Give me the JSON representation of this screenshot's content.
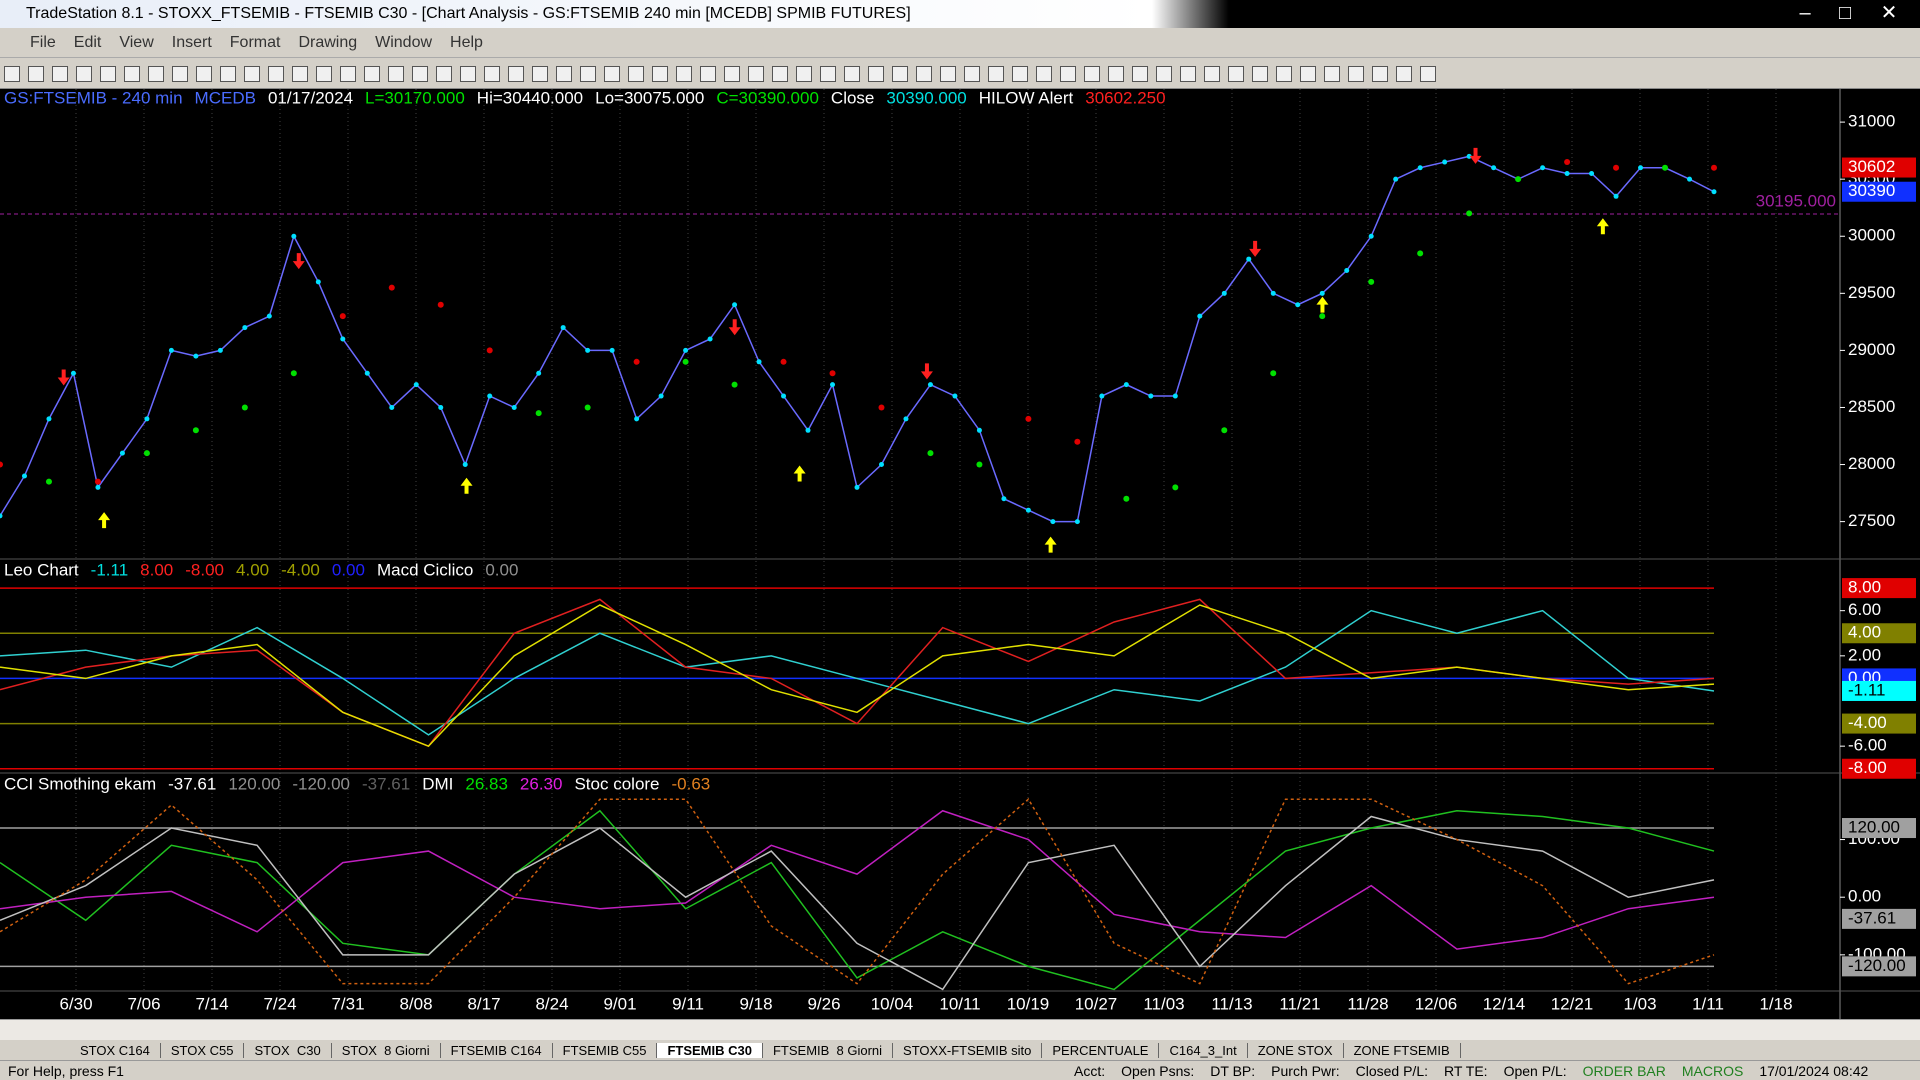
{
  "window": {
    "title": "TradeStation 8.1 - STOXX_FTSEMIB - FTSEMIB C30 - [Chart Analysis - GS:FTSEMIB  240 min  [MCEDB] SPMIB FUTURES]",
    "menu": [
      "File",
      "Edit",
      "View",
      "Insert",
      "Format",
      "Drawing",
      "Window",
      "Help"
    ],
    "tabs": [
      "STOX C164",
      "STOX C55",
      "STOX  C30",
      "STOX  8 Giorni",
      "FTSEMIB C164",
      "FTSEMIB C55",
      "FTSEMIB C30",
      "FTSEMIB  8 Giorni",
      "STOXX-FTSEMIB sito",
      "PERCENTUALE",
      "C164_3_Int",
      "ZONE STOX",
      "ZONE FTSEMIB"
    ],
    "active_tab": 6,
    "status": [
      "For Help, press F1",
      "Acct:",
      "Open Psns:",
      "DT BP:",
      "Purch Pwr:",
      "Closed P/L:",
      "RT TE:",
      "Open P/L:",
      "ORDER BAR",
      "MACROS",
      "17/01/2024 08:42"
    ]
  },
  "chart_data": [
    {
      "type": "line",
      "panel": "price",
      "header": [
        {
          "text": "GS:FTSEMIB - 240 min",
          "color": "#4a6cff"
        },
        {
          "text": "MCEDB",
          "color": "#4a6cff"
        },
        {
          "text": "01/17/2024",
          "color": "#ffffff"
        },
        {
          "text": "L=30170.000",
          "color": "#00e000"
        },
        {
          "text": "Hi=30440.000",
          "color": "#ffffff"
        },
        {
          "text": "Lo=30075.000",
          "color": "#ffffff"
        },
        {
          "text": "C=30390.000",
          "color": "#00e000"
        },
        {
          "text": "Close",
          "color": "#ffffff"
        },
        {
          "text": "30390.000",
          "color": "#00e0e0"
        },
        {
          "text": "HILOW Alert",
          "color": "#ffffff"
        },
        {
          "text": "30602.250",
          "color": "#ff2020"
        }
      ],
      "x_labels": [
        "6/30",
        "7/06",
        "7/14",
        "7/24",
        "7/31",
        "8/08",
        "8/17",
        "8/24",
        "9/01",
        "9/11",
        "9/18",
        "9/26",
        "10/04",
        "10/11",
        "10/19",
        "10/27",
        "11/03",
        "11/13",
        "11/21",
        "11/28",
        "12/06",
        "12/14",
        "12/21",
        "1/03",
        "1/11",
        "1/18"
      ],
      "ylim": [
        27190,
        31290
      ],
      "yticks": [
        27500,
        28000,
        28500,
        29000,
        29500,
        30000,
        30500,
        31000
      ],
      "markers": [
        {
          "value": 30602,
          "color": "#e00000",
          "text_color": "#ffffff"
        },
        {
          "value": 30390,
          "color": "#1030ff",
          "text_color": "#ffffff"
        }
      ],
      "level": {
        "value": 30195,
        "label": "30195.000",
        "color": "#a020a0"
      },
      "series": [
        {
          "color": "#6a6aff",
          "point_color": "#00e0ff",
          "values": [
            27550,
            27900,
            28400,
            28800,
            27800,
            28100,
            28400,
            29000,
            28950,
            29000,
            29200,
            29300,
            30000,
            29600,
            29100,
            28800,
            28500,
            28700,
            28500,
            28000,
            28600,
            28500,
            28800,
            29200,
            29000,
            29000,
            28400,
            28600,
            29000,
            29100,
            29400,
            28900,
            28600,
            28300,
            28700,
            27800,
            28000,
            28400,
            28700,
            28600,
            28300,
            27700,
            27600,
            27500,
            27500,
            28600,
            28700,
            28600,
            28600,
            29300,
            29500,
            29800,
            29500,
            29400,
            29500,
            29700,
            30000,
            30500,
            30600,
            30650,
            30700,
            30600,
            30500,
            30600,
            30550,
            30550,
            30350,
            30600,
            30600,
            30500,
            30390
          ]
        },
        {
          "color": "#00e000",
          "down_color": "#e00000",
          "values": [
            28000,
            27850,
            27850,
            28100,
            28300,
            28500,
            28800,
            29300,
            29550,
            29400,
            29000,
            28450,
            28500,
            28900,
            28900,
            28700,
            28900,
            28800,
            28500,
            28100,
            28000,
            28400,
            28200,
            27700,
            27800,
            28300,
            28800,
            29300,
            29600,
            29850,
            30200,
            30500,
            30650,
            30600,
            30600,
            30600
          ]
        }
      ]
    },
    {
      "type": "line",
      "panel": "leo",
      "header": [
        {
          "text": "Leo Chart",
          "color": "#ffffff"
        },
        {
          "text": "-1.11",
          "color": "#00e0e0"
        },
        {
          "text": "8.00",
          "color": "#ff2020"
        },
        {
          "text": "-8.00",
          "color": "#ff2020"
        },
        {
          "text": "4.00",
          "color": "#a0a000"
        },
        {
          "text": "-4.00",
          "color": "#a0a000"
        },
        {
          "text": "0.00",
          "color": "#2020ff"
        },
        {
          "text": "Macd Ciclico",
          "color": "#ffffff"
        },
        {
          "text": "0.00",
          "color": "#909090"
        }
      ],
      "ylim": [
        -8.2,
        10.4
      ],
      "yticks": [
        {
          "value": 6,
          "label": "6.00"
        },
        {
          "value": 2,
          "label": "2.00"
        },
        {
          "value": -6,
          "label": "-6.00"
        }
      ],
      "markers": [
        {
          "value": 8,
          "label": "8.00",
          "color": "#e00000",
          "text_color": "#ffffff",
          "line": true
        },
        {
          "value": 4,
          "label": "4.00",
          "color": "#808000",
          "text_color": "#ffffff",
          "line": true
        },
        {
          "value": 0,
          "label": "0.00",
          "color": "#1030ff",
          "text_color": "#ffffff",
          "line": true
        },
        {
          "value": -1.11,
          "label": "-1.11",
          "color": "#00ffff",
          "text_color": "#000000",
          "line": false
        },
        {
          "value": -4,
          "label": "-4.00",
          "color": "#808000",
          "text_color": "#ffffff",
          "line": true
        },
        {
          "value": -8,
          "label": "-8.00",
          "color": "#e00000",
          "text_color": "#ffffff",
          "line": true
        }
      ],
      "series": [
        {
          "color": "#30d0d0",
          "values": [
            2,
            2.5,
            1,
            4.5,
            0,
            -5,
            0,
            4,
            1,
            2,
            0,
            -2,
            -4,
            -1,
            -2,
            1,
            6,
            4,
            6,
            0,
            -1.11
          ]
        },
        {
          "color": "#e02020",
          "values": [
            -1,
            1,
            2,
            2.5,
            -3,
            -6,
            4,
            7,
            1,
            0,
            -4,
            4.5,
            1.5,
            5,
            7,
            0,
            0.5,
            1,
            0,
            -0.5,
            0
          ]
        },
        {
          "color": "#e0e000",
          "values": [
            1,
            0,
            2,
            3,
            -3,
            -6,
            2,
            6.5,
            3,
            -1,
            -3,
            2,
            3,
            2,
            6.5,
            4,
            0,
            1,
            0,
            -1,
            -0.5
          ]
        }
      ]
    },
    {
      "type": "line",
      "panel": "cci",
      "header": [
        {
          "text": "CCI Smothing ekam",
          "color": "#ffffff"
        },
        {
          "text": "-37.61",
          "color": "#ffffff"
        },
        {
          "text": "120.00",
          "color": "#909090"
        },
        {
          "text": "-120.00",
          "color": "#909090"
        },
        {
          "text": "-37.61",
          "color": "#606060"
        },
        {
          "text": "DMI",
          "color": "#ffffff"
        },
        {
          "text": "26.83",
          "color": "#00e000"
        },
        {
          "text": "26.30",
          "color": "#e020e0"
        },
        {
          "text": "Stoc colore",
          "color": "#ffffff"
        },
        {
          "text": "-0.63",
          "color": "#e08020"
        }
      ],
      "ylim": [
        -161,
        212
      ],
      "yticks": [
        {
          "value": 100,
          "label": "100.00"
        },
        {
          "value": 0,
          "label": "0.00"
        },
        {
          "value": -100,
          "label": "-100.00"
        }
      ],
      "markers": [
        {
          "value": 120,
          "label": "120.00",
          "color": "#a0a0a0",
          "text_color": "#000000",
          "line": true
        },
        {
          "value": -37.61,
          "label": "-37.61",
          "color": "#a0a0a0",
          "text_color": "#000000",
          "line": false
        },
        {
          "value": -120,
          "label": "-120.00",
          "color": "#a0a0a0",
          "text_color": "#000000",
          "line": true
        }
      ],
      "series": [
        {
          "color": "#20c020",
          "values": [
            60,
            -40,
            90,
            60,
            -80,
            -100,
            40,
            150,
            -20,
            60,
            -140,
            -60,
            -120,
            -160,
            -40,
            80,
            120,
            150,
            140,
            120,
            80
          ]
        },
        {
          "color": "#c020c0",
          "values": [
            -20,
            0,
            10,
            -60,
            60,
            80,
            0,
            -20,
            -10,
            90,
            40,
            150,
            100,
            -30,
            -60,
            -70,
            20,
            -90,
            -70,
            -20,
            0
          ]
        },
        {
          "color": "#c0c0c0",
          "values": [
            -40,
            20,
            120,
            90,
            -100,
            -100,
            40,
            120,
            0,
            80,
            -80,
            -160,
            60,
            90,
            -120,
            20,
            140,
            100,
            80,
            0,
            30
          ]
        },
        {
          "color": "#d06010",
          "dashed": true,
          "values": [
            -60,
            30,
            160,
            30,
            -150,
            -150,
            0,
            170,
            170,
            -50,
            -150,
            40,
            170,
            -80,
            -150,
            170,
            170,
            100,
            20,
            -150,
            -100
          ]
        }
      ]
    }
  ]
}
